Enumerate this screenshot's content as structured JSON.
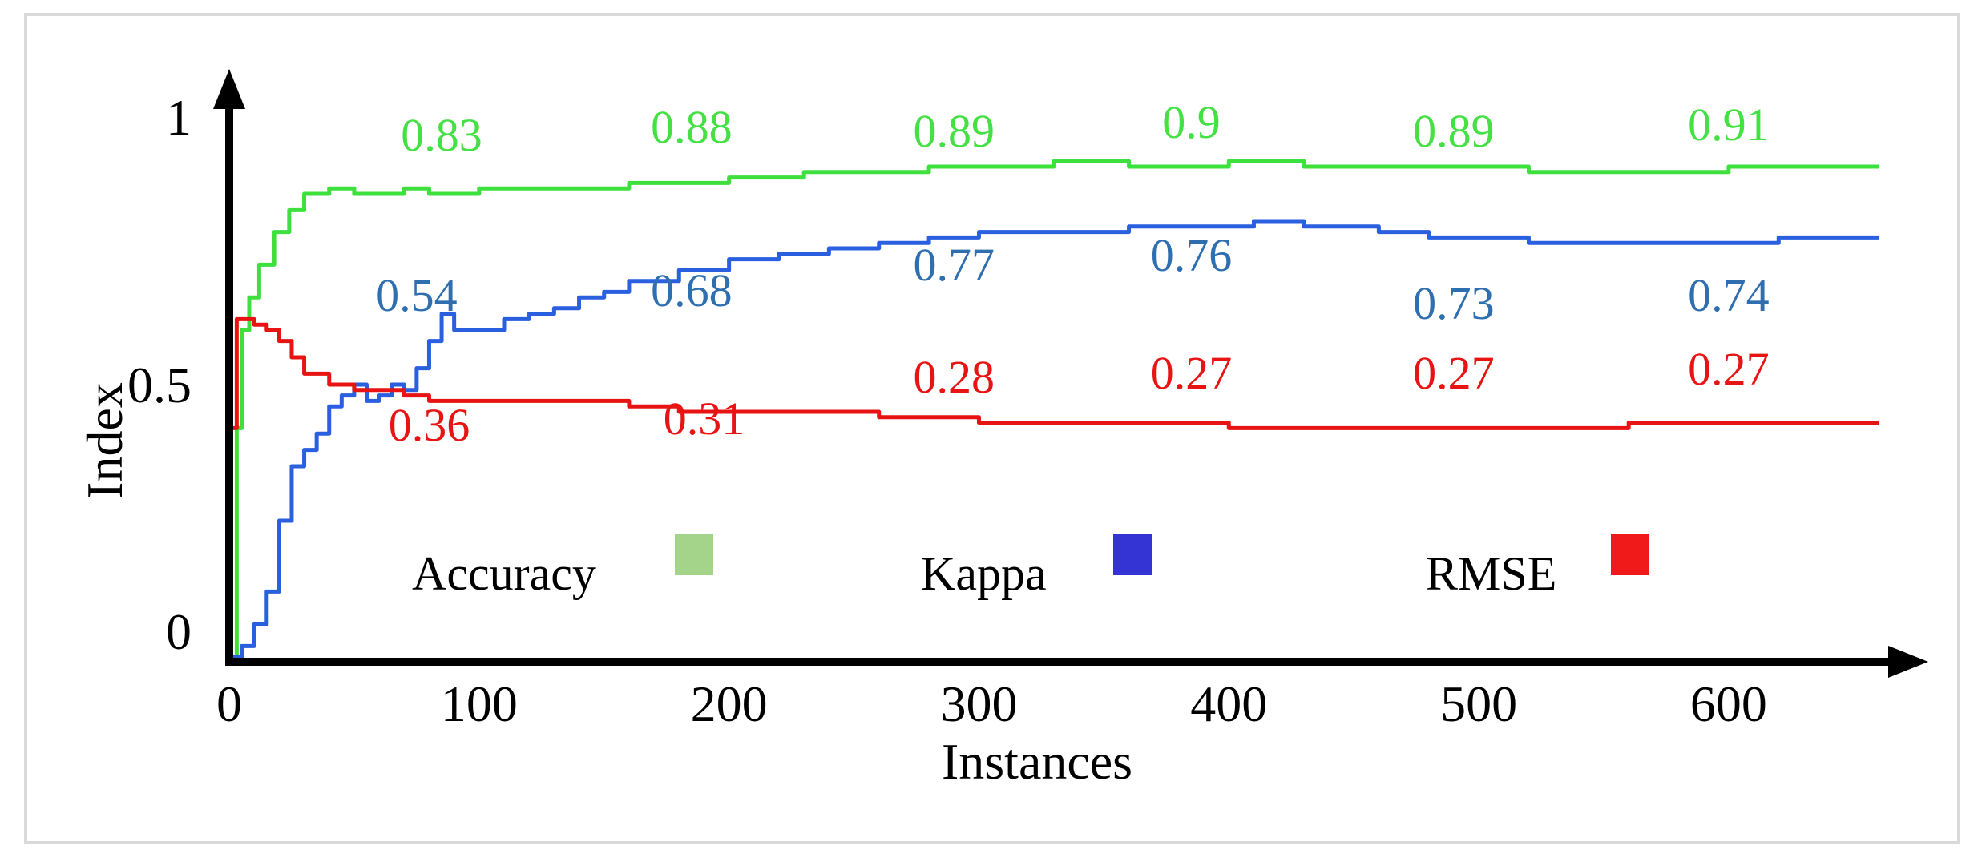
{
  "chart_data": {
    "type": "line",
    "xlabel": "Instances",
    "ylabel": "Index",
    "xlim": [
      0,
      660
    ],
    "ylim": [
      0,
      1
    ],
    "x_ticks": [
      "0",
      "100",
      "200",
      "300",
      "400",
      "500",
      "600"
    ],
    "y_ticks": [
      "0",
      "0.5",
      "1"
    ],
    "legend": {
      "placement": "inside-bottom",
      "entries": [
        {
          "name": "Accuracy",
          "color": "#a4d38a"
        },
        {
          "name": "Kappa",
          "color": "#3434d4"
        },
        {
          "name": "RMSE",
          "color": "#f01a1a"
        }
      ]
    },
    "series": [
      {
        "name": "Accuracy",
        "color": "#3ee03e",
        "points": [
          [
            1,
            0
          ],
          [
            3,
            0.42
          ],
          [
            5,
            0.6
          ],
          [
            8,
            0.66
          ],
          [
            12,
            0.72
          ],
          [
            18,
            0.78
          ],
          [
            24,
            0.82
          ],
          [
            30,
            0.85
          ],
          [
            40,
            0.86
          ],
          [
            50,
            0.85
          ],
          [
            60,
            0.85
          ],
          [
            70,
            0.86
          ],
          [
            80,
            0.85
          ],
          [
            100,
            0.86
          ],
          [
            130,
            0.86
          ],
          [
            160,
            0.87
          ],
          [
            180,
            0.87
          ],
          [
            200,
            0.88
          ],
          [
            230,
            0.89
          ],
          [
            260,
            0.89
          ],
          [
            280,
            0.9
          ],
          [
            300,
            0.9
          ],
          [
            330,
            0.91
          ],
          [
            360,
            0.9
          ],
          [
            400,
            0.91
          ],
          [
            430,
            0.9
          ],
          [
            480,
            0.9
          ],
          [
            500,
            0.9
          ],
          [
            520,
            0.89
          ],
          [
            560,
            0.89
          ],
          [
            600,
            0.9
          ],
          [
            660,
            0.9
          ]
        ],
        "annotations": [
          {
            "x": 85,
            "label": "0.83"
          },
          {
            "x": 185,
            "label": "0.88"
          },
          {
            "x": 290,
            "label": "0.89"
          },
          {
            "x": 385,
            "label": "0.9"
          },
          {
            "x": 490,
            "label": "0.89"
          },
          {
            "x": 600,
            "label": "0.91"
          }
        ]
      },
      {
        "name": "Kappa",
        "color": "#2a5fe0",
        "points": [
          [
            1,
            0
          ],
          [
            5,
            0.02
          ],
          [
            10,
            0.06
          ],
          [
            15,
            0.12
          ],
          [
            20,
            0.25
          ],
          [
            25,
            0.35
          ],
          [
            30,
            0.38
          ],
          [
            35,
            0.41
          ],
          [
            40,
            0.46
          ],
          [
            45,
            0.48
          ],
          [
            50,
            0.5
          ],
          [
            55,
            0.47
          ],
          [
            60,
            0.48
          ],
          [
            65,
            0.5
          ],
          [
            70,
            0.49
          ],
          [
            75,
            0.53
          ],
          [
            80,
            0.58
          ],
          [
            85,
            0.63
          ],
          [
            90,
            0.6
          ],
          [
            100,
            0.6
          ],
          [
            110,
            0.62
          ],
          [
            120,
            0.63
          ],
          [
            130,
            0.64
          ],
          [
            140,
            0.66
          ],
          [
            150,
            0.67
          ],
          [
            160,
            0.69
          ],
          [
            180,
            0.71
          ],
          [
            200,
            0.73
          ],
          [
            220,
            0.74
          ],
          [
            240,
            0.75
          ],
          [
            260,
            0.76
          ],
          [
            280,
            0.77
          ],
          [
            300,
            0.78
          ],
          [
            330,
            0.78
          ],
          [
            360,
            0.79
          ],
          [
            390,
            0.79
          ],
          [
            410,
            0.8
          ],
          [
            430,
            0.79
          ],
          [
            460,
            0.78
          ],
          [
            480,
            0.77
          ],
          [
            500,
            0.77
          ],
          [
            520,
            0.76
          ],
          [
            540,
            0.76
          ],
          [
            560,
            0.76
          ],
          [
            580,
            0.76
          ],
          [
            620,
            0.77
          ],
          [
            660,
            0.77
          ]
        ],
        "annotations": [
          {
            "x": 75,
            "label": "0.54"
          },
          {
            "x": 185,
            "label": "0.68"
          },
          {
            "x": 290,
            "label": "0.77"
          },
          {
            "x": 385,
            "label": "0.76"
          },
          {
            "x": 490,
            "label": "0.73"
          },
          {
            "x": 600,
            "label": "0.74"
          }
        ]
      },
      {
        "name": "RMSE",
        "color": "#e81414",
        "points": [
          [
            1,
            0.42
          ],
          [
            3,
            0.62
          ],
          [
            6,
            0.62
          ],
          [
            10,
            0.61
          ],
          [
            15,
            0.6
          ],
          [
            20,
            0.58
          ],
          [
            25,
            0.55
          ],
          [
            30,
            0.52
          ],
          [
            40,
            0.5
          ],
          [
            50,
            0.49
          ],
          [
            60,
            0.49
          ],
          [
            70,
            0.48
          ],
          [
            80,
            0.47
          ],
          [
            100,
            0.47
          ],
          [
            130,
            0.47
          ],
          [
            160,
            0.46
          ],
          [
            180,
            0.45
          ],
          [
            200,
            0.45
          ],
          [
            230,
            0.45
          ],
          [
            260,
            0.44
          ],
          [
            280,
            0.44
          ],
          [
            300,
            0.43
          ],
          [
            330,
            0.43
          ],
          [
            360,
            0.43
          ],
          [
            400,
            0.42
          ],
          [
            450,
            0.42
          ],
          [
            500,
            0.42
          ],
          [
            530,
            0.42
          ],
          [
            560,
            0.43
          ],
          [
            600,
            0.43
          ],
          [
            660,
            0.43
          ]
        ],
        "annotations": [
          {
            "x": 80,
            "label": "0.36"
          },
          {
            "x": 190,
            "label": "0.31"
          },
          {
            "x": 290,
            "label": "0.28"
          },
          {
            "x": 385,
            "label": "0.27"
          },
          {
            "x": 490,
            "label": "0.27"
          },
          {
            "x": 600,
            "label": "0.27"
          }
        ]
      }
    ]
  }
}
